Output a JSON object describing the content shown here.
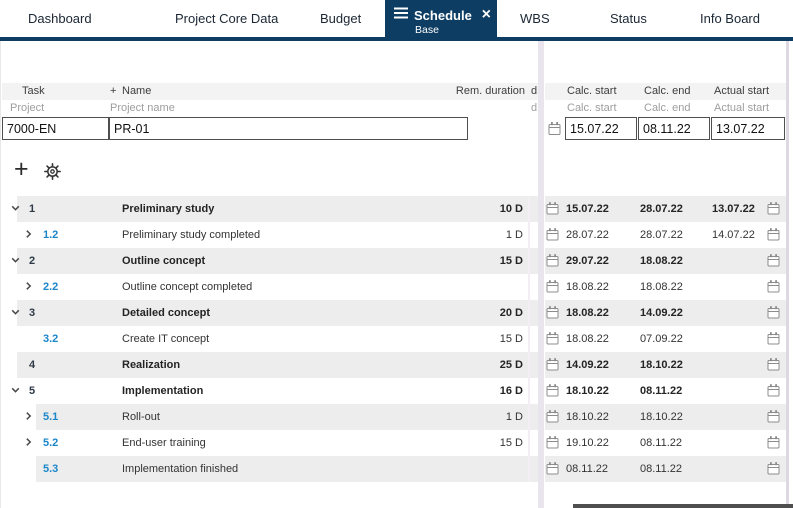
{
  "tabs": [
    {
      "label": "Dashboard"
    },
    {
      "label": "Project Core Data"
    },
    {
      "label": "Budget"
    },
    {
      "label": "Schedule",
      "active": true,
      "sublabel": "Base"
    },
    {
      "label": "WBS"
    },
    {
      "label": "Status"
    },
    {
      "label": "Info Board"
    }
  ],
  "grid": {
    "columns": {
      "task": "Task",
      "add": "+",
      "name": "Name",
      "rem_duration": "Rem. duration",
      "clipped": "d",
      "calc_start": "Calc. start",
      "calc_end": "Calc. end",
      "actual_start": "Actual start"
    },
    "subcolumns": {
      "task": "Project",
      "name": "Project name",
      "clipped": "d",
      "calc_start": "Calc. start",
      "calc_end": "Calc. end",
      "actual_start": "Actual start"
    }
  },
  "project": {
    "id": "7000-EN",
    "name": "PR-01",
    "calc_start": "15.07.22",
    "calc_end": "08.11.22",
    "actual_start": "13.07.22"
  },
  "toolbar": {
    "add_label": "+"
  },
  "rows": [
    {
      "num": "1",
      "name": "Preliminary study",
      "duration": "10 D",
      "calc_start": "15.07.22",
      "calc_end": "28.07.22",
      "actual_start": "13.07.22",
      "level": 1,
      "chevron": "down"
    },
    {
      "num": "1.2",
      "name": "Preliminary study completed",
      "duration": "1 D",
      "calc_start": "28.07.22",
      "calc_end": "28.07.22",
      "actual_start": "14.07.22",
      "level": 2,
      "chevron": "right"
    },
    {
      "num": "2",
      "name": "Outline concept",
      "duration": "15 D",
      "calc_start": "29.07.22",
      "calc_end": "18.08.22",
      "actual_start": "",
      "level": 1,
      "chevron": "down"
    },
    {
      "num": "2.2",
      "name": "Outline concept completed",
      "duration": "",
      "calc_start": "18.08.22",
      "calc_end": "18.08.22",
      "actual_start": "",
      "level": 2,
      "chevron": "right"
    },
    {
      "num": "3",
      "name": "Detailed concept",
      "duration": "20 D",
      "calc_start": "18.08.22",
      "calc_end": "14.09.22",
      "actual_start": "",
      "level": 1,
      "chevron": "down"
    },
    {
      "num": "3.2",
      "name": "Create IT concept",
      "duration": "15 D",
      "calc_start": "18.08.22",
      "calc_end": "07.09.22",
      "actual_start": "",
      "level": 2,
      "chevron": "none"
    },
    {
      "num": "4",
      "name": "Realization",
      "duration": "25 D",
      "calc_start": "14.09.22",
      "calc_end": "18.10.22",
      "actual_start": "",
      "level": 1,
      "chevron": "none"
    },
    {
      "num": "5",
      "name": "Implementation",
      "duration": "16 D",
      "calc_start": "18.10.22",
      "calc_end": "08.11.22",
      "actual_start": "",
      "level": 1,
      "chevron": "down"
    },
    {
      "num": "5.1",
      "name": "Roll-out",
      "duration": "1 D",
      "calc_start": "18.10.22",
      "calc_end": "18.10.22",
      "actual_start": "",
      "level": 2,
      "chevron": "right"
    },
    {
      "num": "5.2",
      "name": "End-user training",
      "duration": "15 D",
      "calc_start": "19.10.22",
      "calc_end": "08.11.22",
      "actual_start": "",
      "level": 2,
      "chevron": "right"
    },
    {
      "num": "5.3",
      "name": "Implementation finished",
      "duration": "",
      "calc_start": "08.11.22",
      "calc_end": "08.11.22",
      "actual_start": "",
      "level": 2,
      "chevron": "none"
    }
  ],
  "colors": {
    "accent_navy": "#0d3d63",
    "row_stripe": "#ededed",
    "link_blue": "#1b86c8",
    "splitter_lavender": "#eae5ed"
  }
}
